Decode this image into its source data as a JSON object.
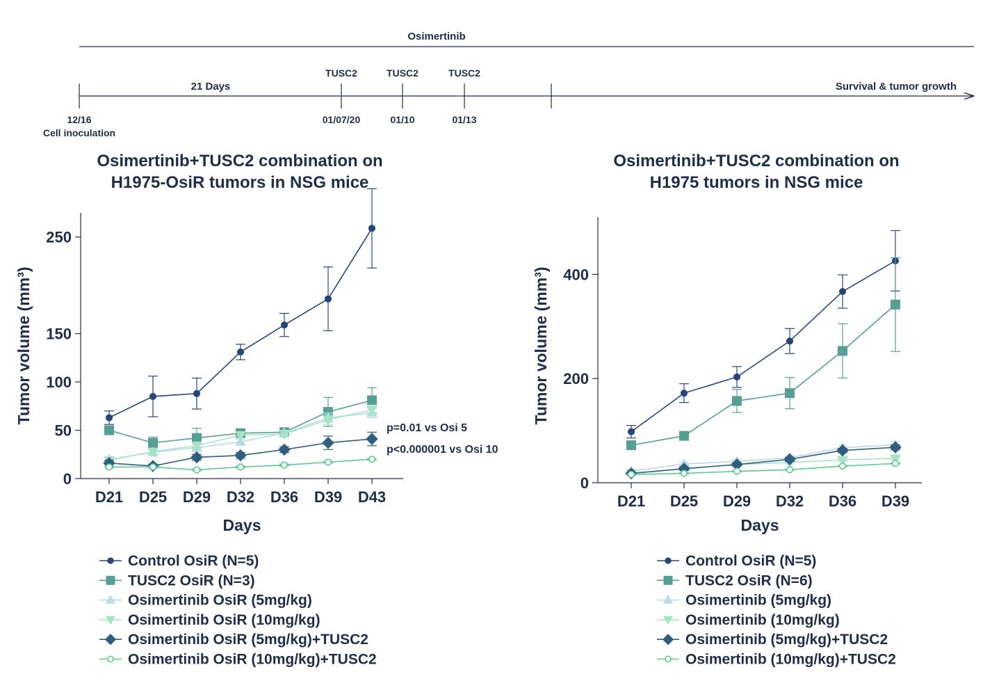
{
  "timeline": {
    "drug_label": "Osimertinib",
    "period_label": "21 Days",
    "end_label": "Survival & tumor growth",
    "start_date": "12/16",
    "start_event": "Cell inoculation",
    "doses": [
      {
        "label": "TUSC2",
        "date": "01/07/20"
      },
      {
        "label": "TUSC2",
        "date": "01/10"
      },
      {
        "label": "TUSC2",
        "date": "01/13"
      }
    ]
  },
  "colors": {
    "control": "#27457a",
    "tusc2": "#579e94",
    "osi5": "#b8dce3",
    "osi10": "#a6e3c5",
    "osi5_tusc2": "#2f5e80",
    "osi10_tusc2": "#5cc98f"
  },
  "chart_data": [
    {
      "type": "line",
      "title_lines": [
        "Osimertinib+TUSC2 combination on",
        "H1975-OsiR tumors in NSG mice"
      ],
      "xlabel": "Days",
      "ylabel": "Tumor volume (mm³)",
      "x": [
        "D21",
        "D25",
        "D29",
        "D32",
        "D36",
        "D39",
        "D43"
      ],
      "ylim": [
        0,
        275
      ],
      "yticks": [
        0,
        50,
        100,
        150,
        250
      ],
      "annotations": [
        "p=0.01 vs Osi 5",
        "p<0.000001 vs Osi 10"
      ],
      "series": [
        {
          "name": "Control OsiR (N=5)",
          "color_key": "control",
          "marker": "circle",
          "values": [
            63,
            85,
            88,
            131,
            159,
            186,
            259
          ],
          "errors": [
            7,
            21,
            16,
            8,
            12,
            33,
            41
          ]
        },
        {
          "name": "TUSC2 OsiR (N=3)",
          "color_key": "tusc2",
          "marker": "square",
          "values": [
            50,
            37,
            42,
            47,
            48,
            69,
            81
          ],
          "errors": [
            3,
            6,
            10,
            3,
            3,
            15,
            13
          ]
        },
        {
          "name": "Osimertinib OsiR (5mg/kg)",
          "color_key": "osi5",
          "marker": "triangle-up",
          "values": [
            20,
            27,
            32,
            38,
            47,
            63,
            68
          ],
          "errors": [
            2,
            3,
            4,
            3,
            3,
            5,
            5
          ]
        },
        {
          "name": "Osimertinib OsiR (10mg/kg)",
          "color_key": "osi10",
          "marker": "triangle-down",
          "values": [
            19,
            28,
            34,
            45,
            46,
            61,
            71
          ],
          "errors": [
            2,
            3,
            4,
            3,
            3,
            5,
            5
          ]
        },
        {
          "name": "Osimertinib OsiR (5mg/kg)+TUSC2",
          "color_key": "osi5_tusc2",
          "marker": "diamond",
          "values": [
            16,
            13,
            22,
            24,
            30,
            37,
            41
          ],
          "errors": [
            3,
            2,
            3,
            3,
            3,
            7,
            7
          ]
        },
        {
          "name": "Osimertinib OsiR (10mg/kg)+TUSC2",
          "color_key": "osi10_tusc2",
          "marker": "open-circle",
          "values": [
            12,
            12,
            9,
            12,
            14,
            17,
            20
          ],
          "errors": [
            1,
            1,
            1,
            1,
            1,
            1,
            1
          ]
        }
      ]
    },
    {
      "type": "line",
      "title_lines": [
        "Osimertinib+TUSC2 combination on",
        "H1975 tumors in NSG mice"
      ],
      "xlabel": "Days",
      "ylabel": "Tumor volume (mm³)",
      "x": [
        "D21",
        "D25",
        "D29",
        "D32",
        "D36",
        "D39"
      ],
      "ylim": [
        0,
        510
      ],
      "yticks": [
        0,
        200,
        400
      ],
      "annotations": [],
      "series": [
        {
          "name": "Control OsiR (N=5)",
          "color_key": "control",
          "marker": "circle",
          "values": [
            98,
            172,
            203,
            272,
            367,
            426
          ],
          "errors": [
            12,
            18,
            20,
            24,
            32,
            58
          ]
        },
        {
          "name": "TUSC2 OsiR (N=6)",
          "color_key": "tusc2",
          "marker": "square",
          "values": [
            72,
            90,
            157,
            172,
            253,
            342
          ],
          "errors": [
            6,
            5,
            22,
            30,
            52,
            90
          ]
        },
        {
          "name": "Osimertinib (5mg/kg)",
          "color_key": "osi5",
          "marker": "triangle-up",
          "values": [
            22,
            36,
            41,
            48,
            67,
            73
          ],
          "errors": [
            3,
            4,
            4,
            4,
            5,
            6
          ]
        },
        {
          "name": "Osimertinib (10mg/kg)",
          "color_key": "osi10",
          "marker": "triangle-down",
          "values": [
            18,
            27,
            35,
            39,
            44,
            47
          ],
          "errors": [
            2,
            3,
            3,
            3,
            3,
            3
          ]
        },
        {
          "name": "Osimertinib (5mg/kg)+TUSC2",
          "color_key": "osi5_tusc2",
          "marker": "diamond",
          "values": [
            18,
            27,
            35,
            45,
            62,
            68
          ],
          "errors": [
            2,
            3,
            3,
            4,
            4,
            5
          ]
        },
        {
          "name": "Osimertinib (10mg/kg)+TUSC2",
          "color_key": "osi10_tusc2",
          "marker": "open-circle",
          "values": [
            16,
            18,
            22,
            25,
            32,
            37
          ],
          "errors": [
            1,
            1,
            1,
            1,
            1,
            1
          ]
        }
      ]
    }
  ]
}
